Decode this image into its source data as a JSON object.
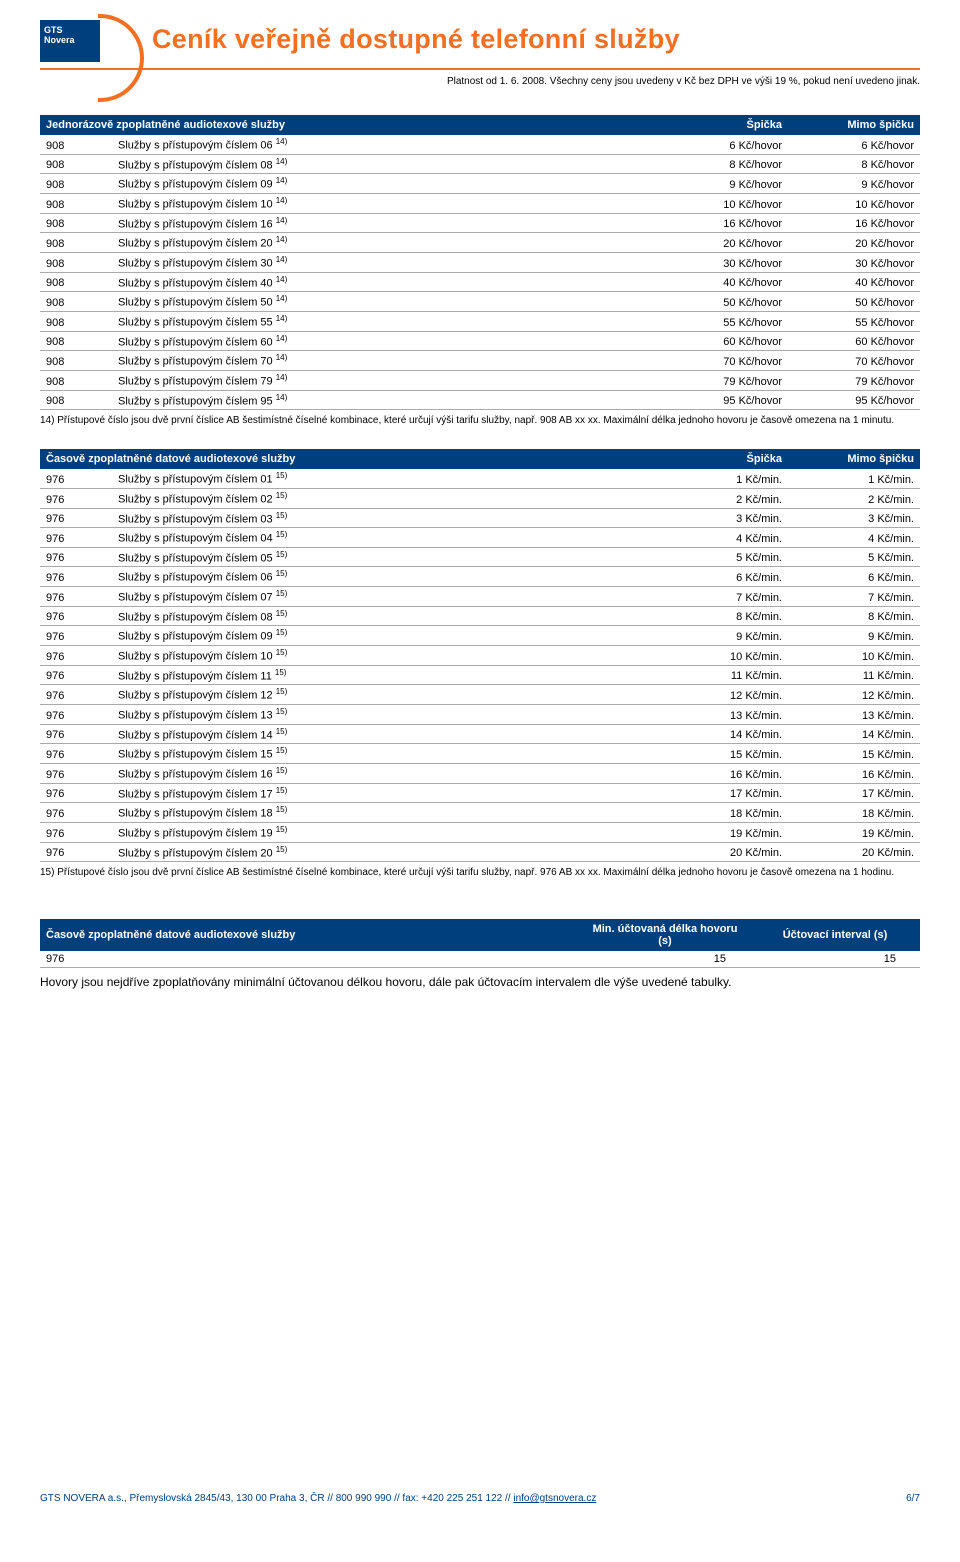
{
  "brand": {
    "line1": "GTS",
    "line2": "Novera"
  },
  "main_title": "Ceník veřejně dostupné telefonní služby",
  "validity_line": "Platnost od 1. 6. 2008. Všechny ceny jsou uvedeny v Kč bez DPH ve výši 19 %, pokud není uvedeno jinak.",
  "table1": {
    "title": "Jednorázově zpoplatněné audiotexové služby",
    "col_peak": "Špička",
    "col_off": "Mimo špičku",
    "code": "908",
    "desc_prefix": "Služby s přístupovým číslem ",
    "note_ref": "14)",
    "unit_suffix": " Kč/hovor",
    "rows": [
      {
        "num": "06",
        "v": "6"
      },
      {
        "num": "08",
        "v": "8"
      },
      {
        "num": "09",
        "v": "9"
      },
      {
        "num": "10",
        "v": "10"
      },
      {
        "num": "16",
        "v": "16"
      },
      {
        "num": "20",
        "v": "20"
      },
      {
        "num": "30",
        "v": "30"
      },
      {
        "num": "40",
        "v": "40"
      },
      {
        "num": "50",
        "v": "50"
      },
      {
        "num": "55",
        "v": "55"
      },
      {
        "num": "60",
        "v": "60"
      },
      {
        "num": "70",
        "v": "70"
      },
      {
        "num": "79",
        "v": "79"
      },
      {
        "num": "95",
        "v": "95"
      }
    ],
    "footnote": "14) Přístupové číslo jsou dvě první číslice AB šestimístné číselné kombinace, které určují výši tarifu služby, např. 908 AB xx xx. Maximální délka jednoho hovoru je časově omezena na 1 minutu."
  },
  "table2": {
    "title": "Časově zpoplatněné datové audiotexové služby",
    "col_peak": "Špička",
    "col_off": "Mimo špičku",
    "code": "976",
    "desc_prefix": "Služby s přístupovým číslem ",
    "note_ref": "15)",
    "unit_suffix": " Kč/min.",
    "rows": [
      {
        "num": "01",
        "v": "1"
      },
      {
        "num": "02",
        "v": "2"
      },
      {
        "num": "03",
        "v": "3"
      },
      {
        "num": "04",
        "v": "4"
      },
      {
        "num": "05",
        "v": "5"
      },
      {
        "num": "06",
        "v": "6"
      },
      {
        "num": "07",
        "v": "7"
      },
      {
        "num": "08",
        "v": "8"
      },
      {
        "num": "09",
        "v": "9"
      },
      {
        "num": "10",
        "v": "10"
      },
      {
        "num": "11",
        "v": "11"
      },
      {
        "num": "12",
        "v": "12"
      },
      {
        "num": "13",
        "v": "13"
      },
      {
        "num": "14",
        "v": "14"
      },
      {
        "num": "15",
        "v": "15"
      },
      {
        "num": "16",
        "v": "16"
      },
      {
        "num": "17",
        "v": "17"
      },
      {
        "num": "18",
        "v": "18"
      },
      {
        "num": "19",
        "v": "19"
      },
      {
        "num": "20",
        "v": "20"
      }
    ],
    "footnote": "15) Přístupové číslo jsou dvě první číslice AB šestimístné číselné kombinace, které určují výši tarifu služby, např. 976 AB xx xx. Maximální délka jednoho hovoru je časově omezena  na 1 hodinu."
  },
  "billing": {
    "title": "Časově zpoplatněné datové audiotexové služby",
    "col_min": "Min. účtovaná délka hovoru (s)",
    "col_int": "Účtovací interval (s)",
    "row_code": "976",
    "row_min": "15",
    "row_int": "15"
  },
  "body_text": "Hovory jsou nejdříve zpoplatňovány minimální účtovanou délkou hovoru, dále pak účtovacím intervalem dle výše uvedené tabulky.",
  "footer": {
    "left_prefix": "GTS NOVERA a.s., Přemyslovská 2845/43, 130 00 Praha 3, ČR // 800 990 990 // fax: +420 225 251 122 // ",
    "email": "info@gtsnovera.cz",
    "page": "6/7"
  }
}
